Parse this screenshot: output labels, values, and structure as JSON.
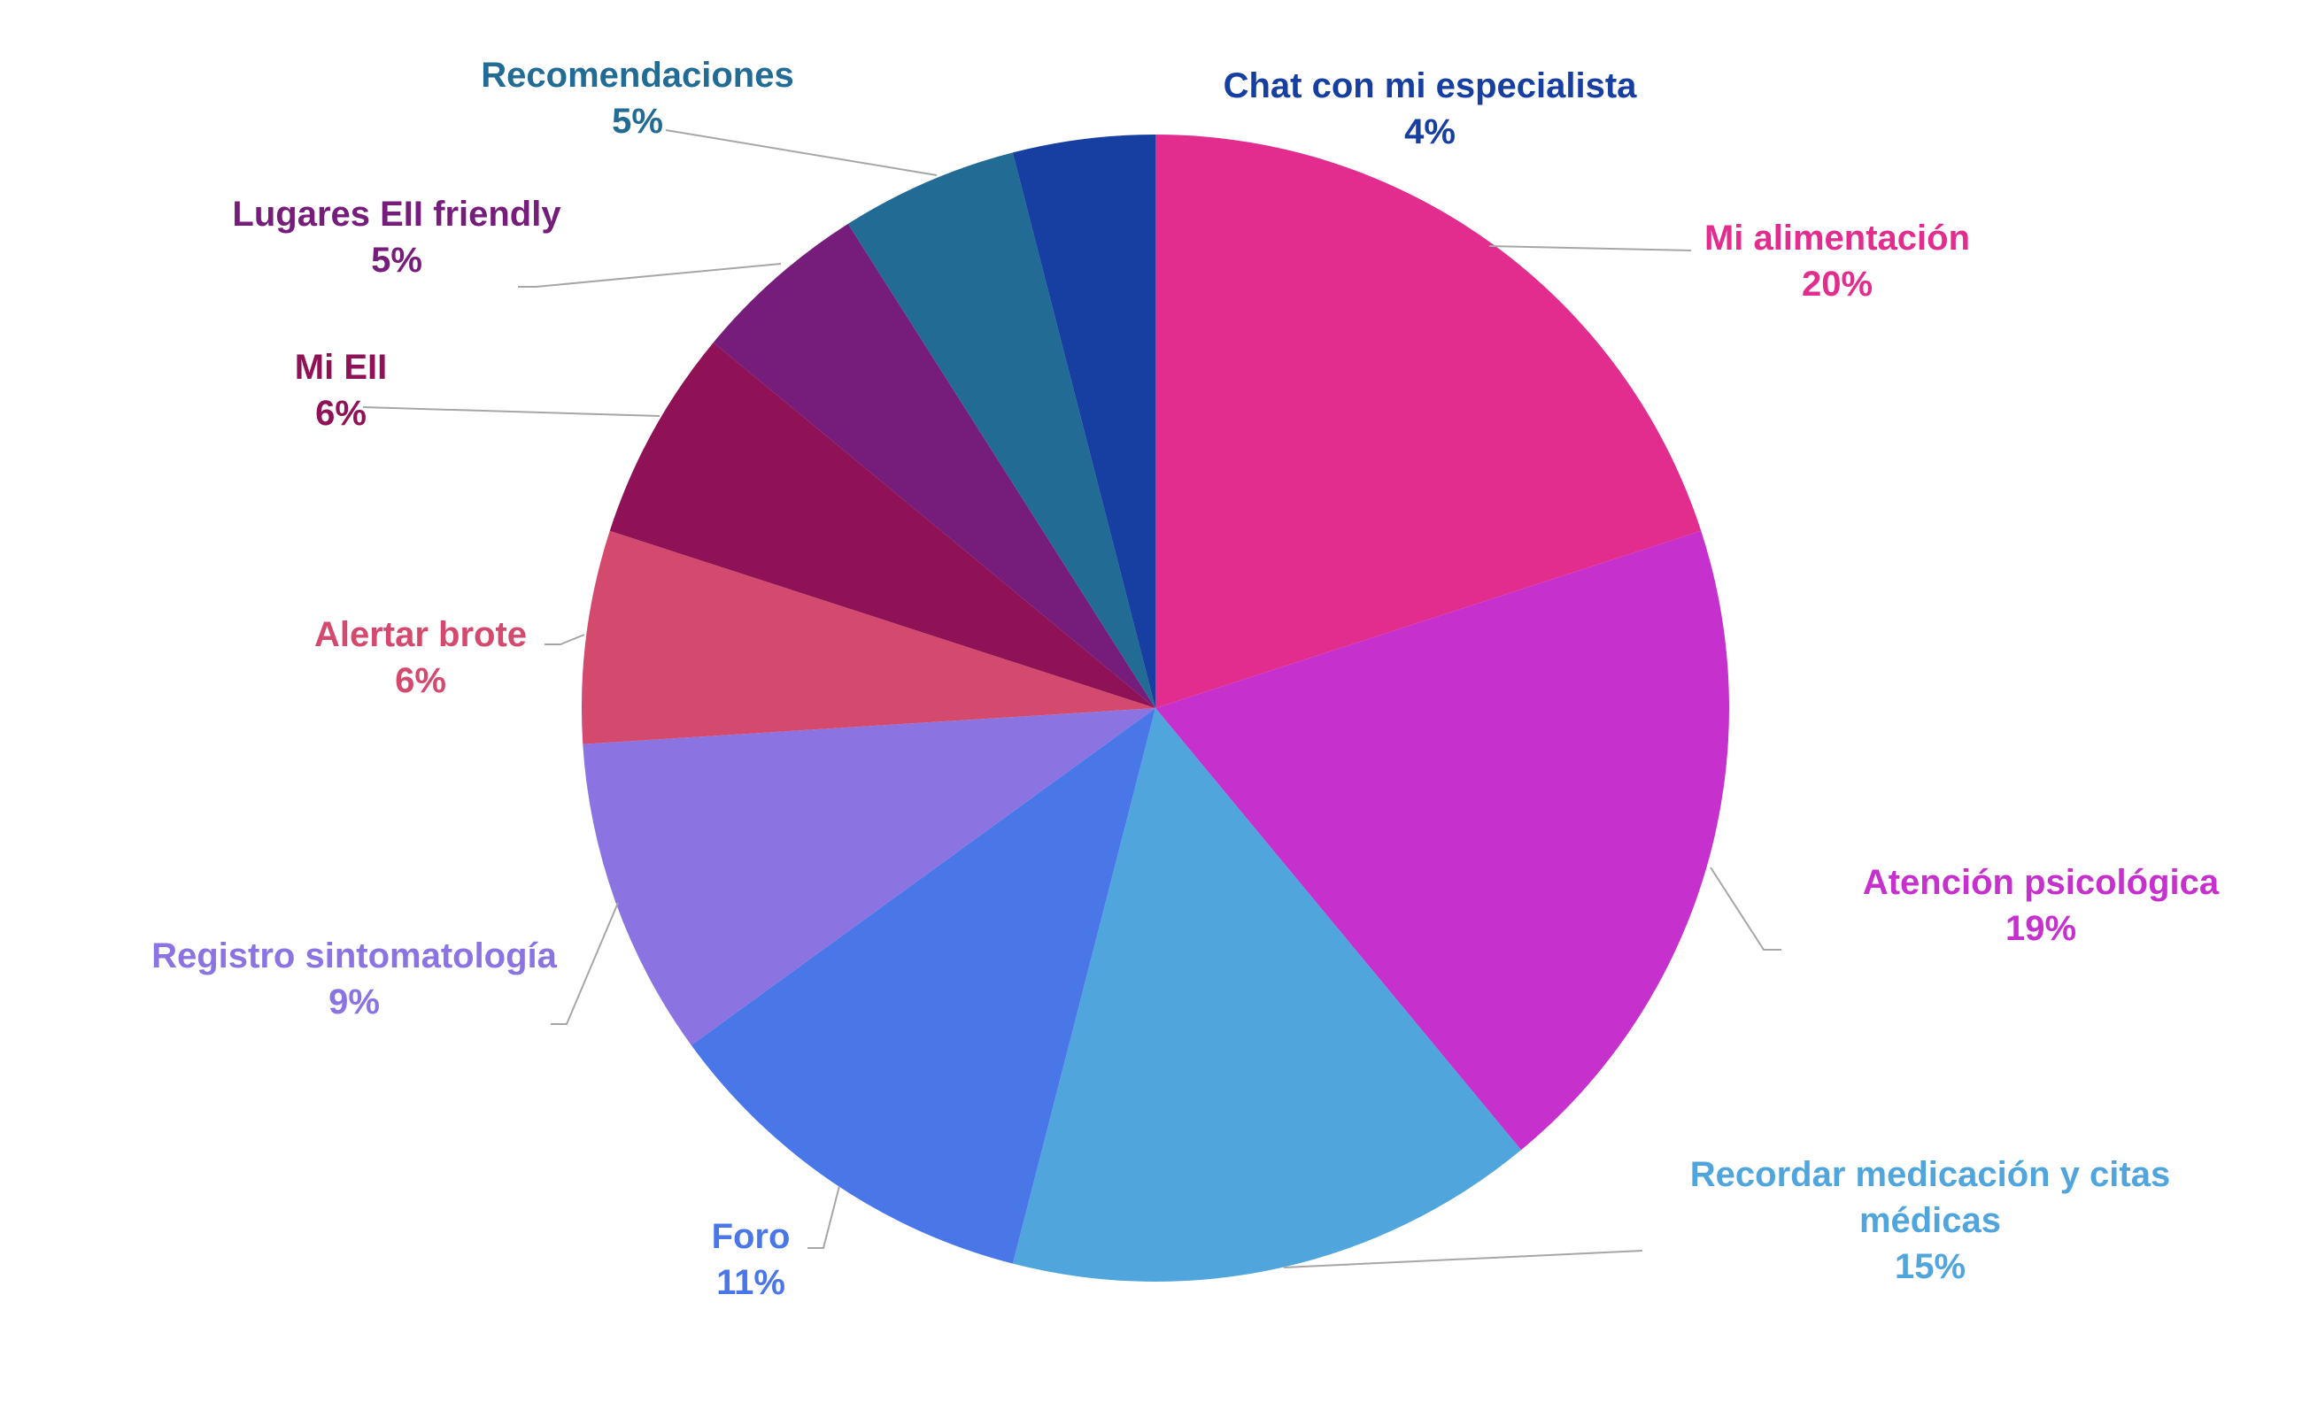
{
  "chart_data": {
    "type": "pie",
    "title": "",
    "slices": [
      {
        "label": "Mi alimentación",
        "value": 20,
        "value_label": "20%",
        "color": "#E22D8F"
      },
      {
        "label": "Atención psicológica",
        "value": 19,
        "value_label": "19%",
        "color": "#C631CD"
      },
      {
        "label": "Recordar medicación y citas médicas",
        "label_lines": [
          "Recordar medicación y citas",
          "médicas"
        ],
        "value": 15,
        "value_label": "15%",
        "color": "#50A6DC"
      },
      {
        "label": "Foro",
        "value": 11,
        "value_label": "11%",
        "color": "#4A77E8"
      },
      {
        "label": "Registro sintomatología",
        "value": 9,
        "value_label": "9%",
        "color": "#8B74E2"
      },
      {
        "label": "Alertar brote",
        "value": 6,
        "value_label": "6%",
        "color": "#D44A6E"
      },
      {
        "label": "Mi EII",
        "value": 6,
        "value_label": "6%",
        "color": "#8E1255"
      },
      {
        "label": "Lugares EII friendly",
        "value": 5,
        "value_label": "5%",
        "color": "#761C7A"
      },
      {
        "label": "Recomendaciones",
        "value": 5,
        "value_label": "5%",
        "color": "#216B95"
      },
      {
        "label": "Chat con mi especialista",
        "value": 4,
        "value_label": "4%",
        "color": "#173EA1"
      }
    ],
    "start": "12 o'clock",
    "direction": "clockwise",
    "labels": "outside with leader lines",
    "leader_color": "#A6A6A6"
  }
}
